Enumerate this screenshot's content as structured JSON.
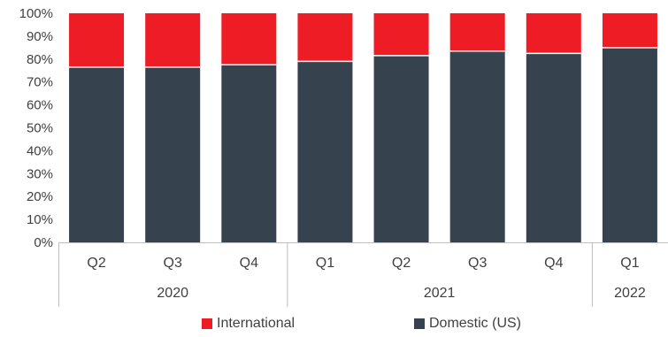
{
  "chart_data": {
    "type": "bar",
    "stacked": true,
    "percent": true,
    "categories": [
      "Q2",
      "Q3",
      "Q4",
      "Q1",
      "Q2",
      "Q3",
      "Q4",
      "Q1"
    ],
    "groups": [
      {
        "label": "2020",
        "count": 3
      },
      {
        "label": "2021",
        "count": 4
      },
      {
        "label": "2022",
        "count": 1
      }
    ],
    "series": [
      {
        "name": "Domestic (US)",
        "color": "#36434f",
        "values": [
          76.5,
          76.5,
          77.5,
          79,
          81.5,
          83.5,
          82.5,
          85
        ]
      },
      {
        "name": "International",
        "color": "#ee1c25",
        "values": [
          23.5,
          23.5,
          22.5,
          21,
          18.5,
          16.5,
          17.5,
          15
        ]
      }
    ],
    "yticks": [
      "0%",
      "10%",
      "20%",
      "30%",
      "40%",
      "50%",
      "60%",
      "70%",
      "80%",
      "90%",
      "100%"
    ],
    "ylim": [
      0,
      100
    ],
    "legend_position": "bottom",
    "grid": false
  },
  "legend": {
    "international": "International",
    "domestic": "Domestic (US)"
  }
}
